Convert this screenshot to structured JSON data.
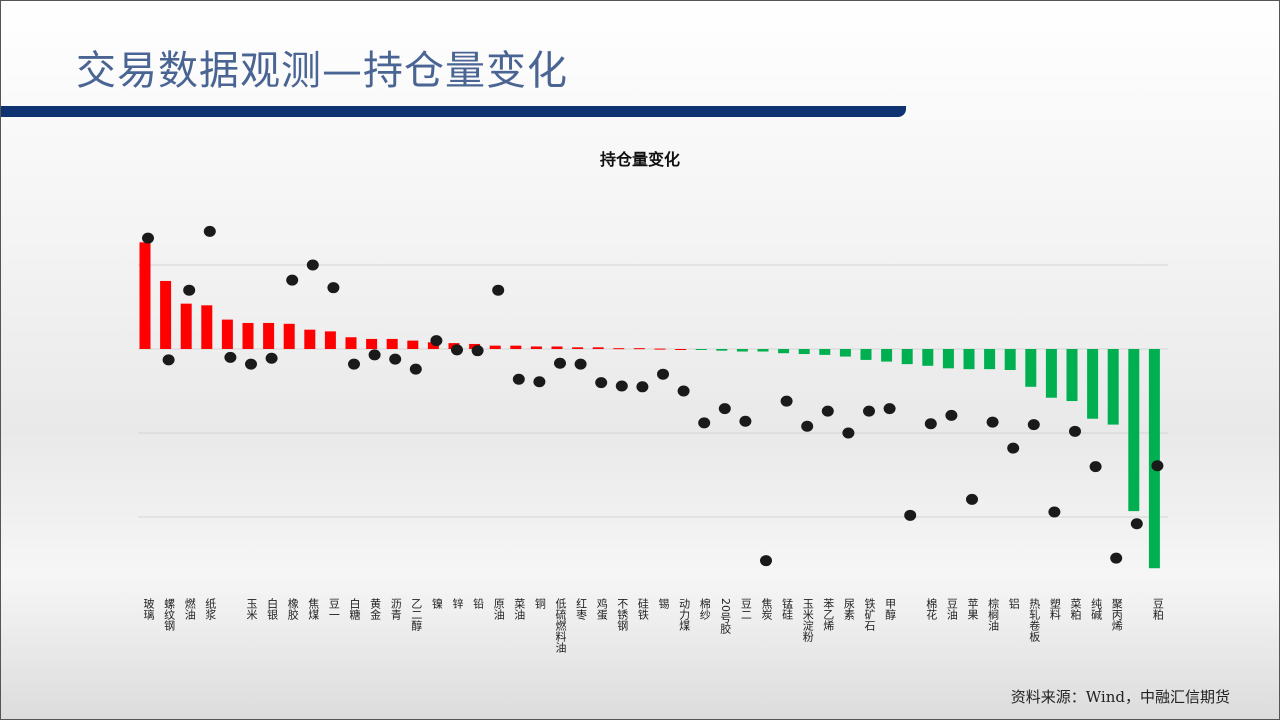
{
  "header": {
    "title": "交易数据观测—持仓量变化"
  },
  "footer": {
    "source": "资料来源：Wind，中融汇信期货"
  },
  "colors": {
    "title": "#4a6593",
    "band": "#0f3271",
    "positive_bar": "#ff0000",
    "negative_bar": "#00b050",
    "dot": "#1a1a1a"
  },
  "chart_data": {
    "type": "bar",
    "title": "持仓量变化",
    "xlabel": "",
    "ylabel": "",
    "ylim": [
      -2.7,
      1.5
    ],
    "grid": true,
    "legend": "none",
    "categories": [
      "玻璃",
      "螺纹钢",
      "燃油",
      "纸浆",
      "",
      "玉米",
      "白银",
      "橡胶",
      "焦煤",
      "豆一",
      "白糖",
      "黄金",
      "沥青",
      "乙二醇",
      "镍",
      "锌",
      "铅",
      "原油",
      "菜油",
      "铜",
      "低硫燃料油",
      "红枣",
      "鸡蛋",
      "不锈钢",
      "硅铁",
      "锡",
      "动力煤",
      "棉纱",
      "20号胶",
      "豆二",
      "焦炭",
      "锰硅",
      "玉米淀粉",
      "苯乙烯",
      "尿素",
      "铁矿石",
      "甲醇",
      "",
      "棉花",
      "豆油",
      "苹果",
      "棕榈油",
      "铝",
      "热轧卷板",
      "塑料",
      "菜粕",
      "纯碱",
      "聚丙烯",
      "",
      "豆粕"
    ],
    "series": [
      {
        "type": "bar",
        "values": [
          1.27,
          0.81,
          0.54,
          0.52,
          0.35,
          0.31,
          0.31,
          0.3,
          0.23,
          0.21,
          0.14,
          0.12,
          0.12,
          0.1,
          0.08,
          0.07,
          0.06,
          0.04,
          0.04,
          0.03,
          0.03,
          0.02,
          0.02,
          0.01,
          0.01,
          0.005,
          0,
          -0.01,
          -0.02,
          -0.03,
          -0.03,
          -0.05,
          -0.06,
          -0.07,
          -0.09,
          -0.13,
          -0.15,
          -0.18,
          -0.2,
          -0.23,
          -0.24,
          -0.24,
          -0.25,
          -0.45,
          -0.58,
          -0.62,
          -0.83,
          -0.9,
          -1.93,
          -2.61
        ]
      },
      {
        "type": "scatter",
        "values": [
          1.32,
          -0.13,
          0.7,
          1.4,
          -0.1,
          -0.18,
          -0.11,
          0.82,
          1.0,
          0.73,
          -0.18,
          -0.07,
          -0.12,
          -0.24,
          0.1,
          -0.01,
          -0.02,
          0.7,
          -0.36,
          -0.39,
          -0.17,
          -0.18,
          -0.4,
          -0.44,
          -0.45,
          -0.3,
          -0.5,
          -0.88,
          -0.71,
          -0.86,
          -2.52,
          -0.62,
          -0.92,
          -0.74,
          -1.0,
          -0.74,
          -0.71,
          -1.98,
          -0.89,
          -0.79,
          -1.79,
          -0.87,
          -1.18,
          -0.9,
          -1.94,
          -0.98,
          -1.4,
          -2.49,
          -2.08,
          -1.39
        ]
      }
    ]
  }
}
